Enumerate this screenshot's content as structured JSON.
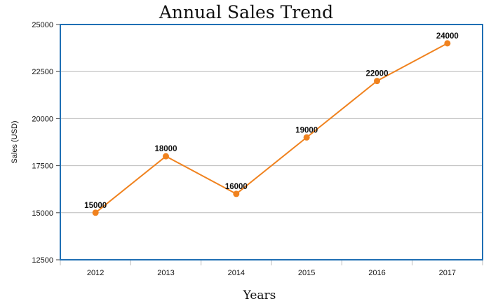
{
  "chart_data": {
    "type": "line",
    "title": "Annual Sales Trend",
    "xlabel": "Years",
    "ylabel": "Sales (USD)",
    "categories": [
      "2012",
      "2013",
      "2014",
      "2015",
      "2016",
      "2017"
    ],
    "series": [
      {
        "values": [
          15000,
          18000,
          16000,
          19000,
          22000,
          24000
        ],
        "color": "#f0821e"
      }
    ],
    "data_labels": [
      "15000",
      "18000",
      "16000",
      "19000",
      "22000",
      "24000"
    ],
    "ylim": [
      12500,
      25000
    ],
    "yticks": [
      12500,
      15000,
      17500,
      20000,
      22500,
      25000
    ],
    "grid": "horizontal",
    "frame_color": "#1f6fb4",
    "grid_color": "#bbbbbb"
  }
}
